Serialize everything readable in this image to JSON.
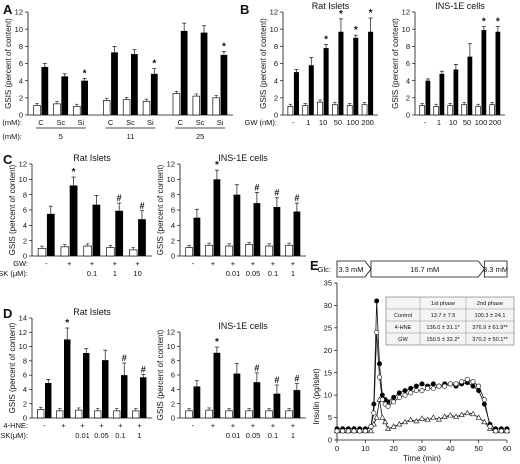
{
  "chart_data": [
    {
      "id": "A",
      "type": "bar",
      "letter": "A",
      "ylabel": "GSIS (percent of content)",
      "ylim": [
        0,
        12
      ],
      "yticks": [
        0,
        2,
        4,
        6,
        8,
        10,
        12
      ],
      "row_label": "Glc (mM):",
      "categories": [
        "C",
        "Sc",
        "Si",
        "C",
        "Sc",
        "Si",
        "C",
        "Sc",
        "Si"
      ],
      "groups": [
        "5",
        "11",
        "25"
      ],
      "series": [
        {
          "name": "",
          "fill": "white",
          "values": [
            1.1,
            1.3,
            1.0,
            1.7,
            1.8,
            1.6,
            2.5,
            2.2,
            2.0
          ]
        },
        {
          "name": "",
          "fill": "black",
          "values": [
            5.6,
            4.5,
            4.0,
            7.3,
            7.1,
            4.8,
            9.8,
            9.6,
            7.0
          ]
        }
      ],
      "errors_black": [
        0.4,
        0.3,
        0.25,
        0.7,
        0.5,
        0.6,
        0.9,
        0.8,
        0.4
      ],
      "markers": [
        {
          "cat": 2,
          "text": "*"
        },
        {
          "cat": 5,
          "text": "*"
        },
        {
          "cat": 8,
          "text": "*"
        }
      ]
    },
    {
      "id": "B1",
      "type": "bar",
      "letter": "B",
      "title": "Rat Islets",
      "ylabel": "GSIS (percent of content)",
      "ylim": [
        0,
        12
      ],
      "yticks": [
        0,
        2,
        4,
        6,
        8,
        10,
        12
      ],
      "row_label": "GW (nM):",
      "categories": [
        "-",
        "1",
        "10",
        "50",
        "100",
        "200"
      ],
      "series": [
        {
          "name": "",
          "fill": "white",
          "values": [
            1.0,
            1.1,
            1.5,
            1.2,
            1.1,
            1.2
          ]
        },
        {
          "name": "",
          "fill": "black",
          "values": [
            5.0,
            5.8,
            7.8,
            9.7,
            9.0,
            9.7
          ]
        }
      ],
      "errors_black": [
        0.3,
        0.9,
        0.4,
        1.5,
        0.3,
        1.6
      ],
      "markers": [
        {
          "cat": 2,
          "text": "*"
        },
        {
          "cat": 3,
          "text": "*"
        },
        {
          "cat": 4,
          "text": "*"
        },
        {
          "cat": 5,
          "text": "*"
        }
      ]
    },
    {
      "id": "B2",
      "type": "bar",
      "title": "INS-1E cells",
      "ylabel": "GSIS (percent of content)",
      "ylim": [
        0,
        12
      ],
      "yticks": [
        0,
        2,
        4,
        6,
        8,
        10,
        12
      ],
      "row_label": "",
      "categories": [
        "-",
        "1",
        "10",
        "50",
        "100",
        "200"
      ],
      "series": [
        {
          "name": "",
          "fill": "white",
          "values": [
            1.1,
            1.0,
            1.1,
            1.2,
            1.0,
            1.2
          ]
        },
        {
          "name": "",
          "fill": "black",
          "values": [
            4.0,
            4.8,
            5.3,
            6.8,
            9.9,
            9.7
          ]
        }
      ],
      "errors_black": [
        0.2,
        0.3,
        0.6,
        1.5,
        0.4,
        0.6
      ],
      "markers": [
        {
          "cat": 4,
          "text": "*"
        },
        {
          "cat": 5,
          "text": "*"
        }
      ]
    },
    {
      "id": "C1",
      "type": "bar",
      "letter": "C",
      "title": "Rat Islets",
      "ylabel": "GSIS (percent of content)",
      "ylim": [
        0,
        12
      ],
      "yticks": [
        0,
        2,
        4,
        6,
        8,
        10,
        12
      ],
      "row_labels": [
        "GW:",
        "GSK (μM):"
      ],
      "rows": [
        [
          "-",
          "+",
          "+",
          "+",
          "+"
        ],
        [
          "",
          "",
          "0.1",
          "1",
          "10"
        ]
      ],
      "categories": [
        "1",
        "2",
        "3",
        "4",
        "5"
      ],
      "series": [
        {
          "name": "",
          "fill": "white",
          "values": [
            1.0,
            1.2,
            1.3,
            1.1,
            0.8
          ]
        },
        {
          "name": "",
          "fill": "black",
          "values": [
            5.5,
            9.2,
            6.7,
            5.9,
            4.8
          ]
        }
      ],
      "errors_black": [
        1.0,
        1.1,
        1.2,
        1.0,
        1.1
      ],
      "markers": [
        {
          "cat": 1,
          "text": "*"
        },
        {
          "cat": 3,
          "text": "#"
        },
        {
          "cat": 4,
          "text": "#"
        }
      ]
    },
    {
      "id": "C2",
      "type": "bar",
      "title": "INS-1E cells",
      "ylabel": "GSIS (percent of content)",
      "ylim": [
        0,
        12
      ],
      "yticks": [
        0,
        2,
        4,
        6,
        8,
        10,
        12
      ],
      "rows": [
        [
          "-",
          "+",
          "+",
          "+",
          "+",
          "+"
        ],
        [
          "",
          "",
          "0.01",
          "0.05",
          "0.1",
          "1"
        ]
      ],
      "categories": [
        "1",
        "2",
        "3",
        "4",
        "5",
        "6"
      ],
      "series": [
        {
          "name": "",
          "fill": "white",
          "values": [
            1.1,
            1.4,
            1.3,
            1.5,
            1.3,
            1.4
          ]
        },
        {
          "name": "",
          "fill": "black",
          "values": [
            5.0,
            10.0,
            8.0,
            6.9,
            6.4,
            5.8
          ]
        }
      ],
      "errors_black": [
        1.1,
        1.2,
        1.3,
        1.4,
        1.2,
        1.1
      ],
      "markers": [
        {
          "cat": 1,
          "text": "*"
        },
        {
          "cat": 3,
          "text": "#"
        },
        {
          "cat": 4,
          "text": "#"
        },
        {
          "cat": 5,
          "text": "#"
        }
      ]
    },
    {
      "id": "D1",
      "type": "bar",
      "letter": "D",
      "title": "Rat Islets",
      "ylabel": "GSIS (percent of content)",
      "ylim": [
        0,
        14
      ],
      "yticks": [
        0,
        2,
        4,
        6,
        8,
        10,
        12,
        14
      ],
      "row_labels": [
        "4-HNE:",
        "GSK(μM):"
      ],
      "rows": [
        [
          "-",
          "+",
          "+",
          "+",
          "+",
          "+"
        ],
        [
          "",
          "",
          "0.01",
          "0.05",
          "0.1",
          "1"
        ]
      ],
      "categories": [
        "1",
        "2",
        "3",
        "4",
        "5",
        "6"
      ],
      "series": [
        {
          "name": "",
          "fill": "white",
          "values": [
            1.2,
            1.0,
            1.1,
            1.0,
            1.0,
            1.0
          ]
        },
        {
          "name": "",
          "fill": "black",
          "values": [
            4.9,
            11.0,
            9.1,
            8.1,
            6.0,
            5.7
          ]
        }
      ],
      "errors_black": [
        0.5,
        1.6,
        0.6,
        1.4,
        1.7,
        0.4
      ],
      "markers": [
        {
          "cat": 1,
          "text": "*"
        },
        {
          "cat": 4,
          "text": "#"
        },
        {
          "cat": 5,
          "text": "#"
        }
      ]
    },
    {
      "id": "D2",
      "type": "bar",
      "title": "INS-1E cells",
      "ylabel": "GSIS (percent of content)",
      "ylim": [
        0,
        12
      ],
      "yticks": [
        0,
        2,
        4,
        6,
        8,
        10,
        12
      ],
      "rows": [
        [
          "-",
          "+",
          "+",
          "+",
          "+",
          "+"
        ],
        [
          "",
          "",
          "0.01",
          "0.05",
          "0.1",
          "1"
        ]
      ],
      "categories": [
        "1",
        "2",
        "3",
        "4",
        "5",
        "6"
      ],
      "series": [
        {
          "name": "",
          "fill": "white",
          "values": [
            1.0,
            1.1,
            1.0,
            1.0,
            1.0,
            1.0
          ]
        },
        {
          "name": "",
          "fill": "black",
          "values": [
            4.4,
            9.1,
            6.2,
            5.0,
            3.4,
            3.9
          ]
        }
      ],
      "errors_black": [
        0.8,
        0.8,
        1.4,
        1.3,
        1.2,
        0.9
      ],
      "markers": [
        {
          "cat": 1,
          "text": "*"
        },
        {
          "cat": 3,
          "text": "#"
        },
        {
          "cat": 4,
          "text": "#"
        },
        {
          "cat": 5,
          "text": "#"
        }
      ]
    },
    {
      "id": "E",
      "type": "line",
      "letter": "E",
      "xlabel": "Time (min)",
      "ylabel": "Insulin (pg/islet)",
      "xlim": [
        0,
        60
      ],
      "ylim": [
        0,
        35
      ],
      "xticks": [
        0,
        10,
        20,
        30,
        40,
        50,
        60
      ],
      "yticks": [
        0,
        5,
        10,
        15,
        20,
        25,
        30,
        35
      ],
      "glc_label": "Glc:",
      "protocol": [
        {
          "label": "3.3 mM",
          "start": 0,
          "end": 12
        },
        {
          "label": "16.7 mM",
          "start": 12,
          "end": 52
        },
        {
          "label": "3.3 mM",
          "start": 52,
          "end": 60
        }
      ],
      "table": {
        "headers": [
          "",
          "1st phase",
          "2nd phase"
        ],
        "rows": [
          [
            "Control",
            "13.7 ± 7.5",
            "100.3 ± 24.1"
          ],
          [
            "4-HNE",
            "136.0 ± 31.1*",
            "376.9 ± 61.9**"
          ],
          [
            "GW",
            "150.5 ± 32.2*",
            "370.2 ± 50.1**"
          ]
        ]
      },
      "series": [
        {
          "name": "Control",
          "marker": "triangle-open",
          "x": [
            0,
            2,
            4,
            6,
            8,
            10,
            12,
            13,
            14,
            15,
            16,
            17,
            18,
            20,
            22,
            24,
            26,
            28,
            30,
            32,
            34,
            36,
            38,
            40,
            42,
            44,
            46,
            48,
            50,
            52,
            54,
            56,
            58,
            60
          ],
          "y": [
            2.0,
            2.0,
            2.0,
            2.0,
            2.0,
            2.0,
            2.0,
            3.5,
            5.0,
            9.0,
            5.0,
            4.0,
            2.5,
            3.0,
            3.5,
            4.0,
            4.5,
            4.2,
            4.8,
            4.5,
            5.0,
            4.6,
            5.2,
            5.5,
            5.2,
            5.6,
            6.0,
            5.8,
            5.0,
            4.0,
            2.5,
            2.0,
            2.0,
            2.0
          ]
        },
        {
          "name": "4-HNE",
          "marker": "circle-filled",
          "x": [
            0,
            2,
            4,
            6,
            8,
            10,
            12,
            13,
            14,
            15,
            16,
            17,
            18,
            20,
            22,
            24,
            26,
            28,
            30,
            32,
            34,
            36,
            38,
            40,
            42,
            44,
            46,
            48,
            50,
            52,
            54,
            56,
            58,
            60
          ],
          "y": [
            2.5,
            2.5,
            2.5,
            2.5,
            2.5,
            2.5,
            3.0,
            8.0,
            31.0,
            17.0,
            10.0,
            9.0,
            8.5,
            9.5,
            10.5,
            11.0,
            11.5,
            12.0,
            12.5,
            12.0,
            12.5,
            12.0,
            12.5,
            12.5,
            12.0,
            12.5,
            12.8,
            12.0,
            11.0,
            8.0,
            3.5,
            2.5,
            2.5,
            2.5
          ]
        },
        {
          "name": "GW",
          "marker": "circle-open",
          "x": [
            0,
            2,
            4,
            6,
            8,
            10,
            12,
            13,
            14,
            15,
            16,
            17,
            18,
            20,
            22,
            24,
            26,
            28,
            30,
            32,
            34,
            36,
            38,
            40,
            42,
            44,
            46,
            48,
            50,
            52,
            54,
            56,
            58,
            60
          ],
          "y": [
            2.0,
            2.0,
            2.0,
            2.0,
            2.0,
            2.0,
            3.0,
            6.0,
            24.0,
            14.0,
            9.0,
            8.0,
            7.5,
            8.5,
            9.5,
            10.0,
            10.5,
            11.0,
            11.0,
            11.5,
            11.5,
            12.0,
            12.0,
            12.5,
            12.5,
            13.0,
            13.5,
            13.0,
            12.0,
            9.0,
            3.0,
            2.0,
            2.0,
            2.0
          ]
        }
      ]
    }
  ]
}
